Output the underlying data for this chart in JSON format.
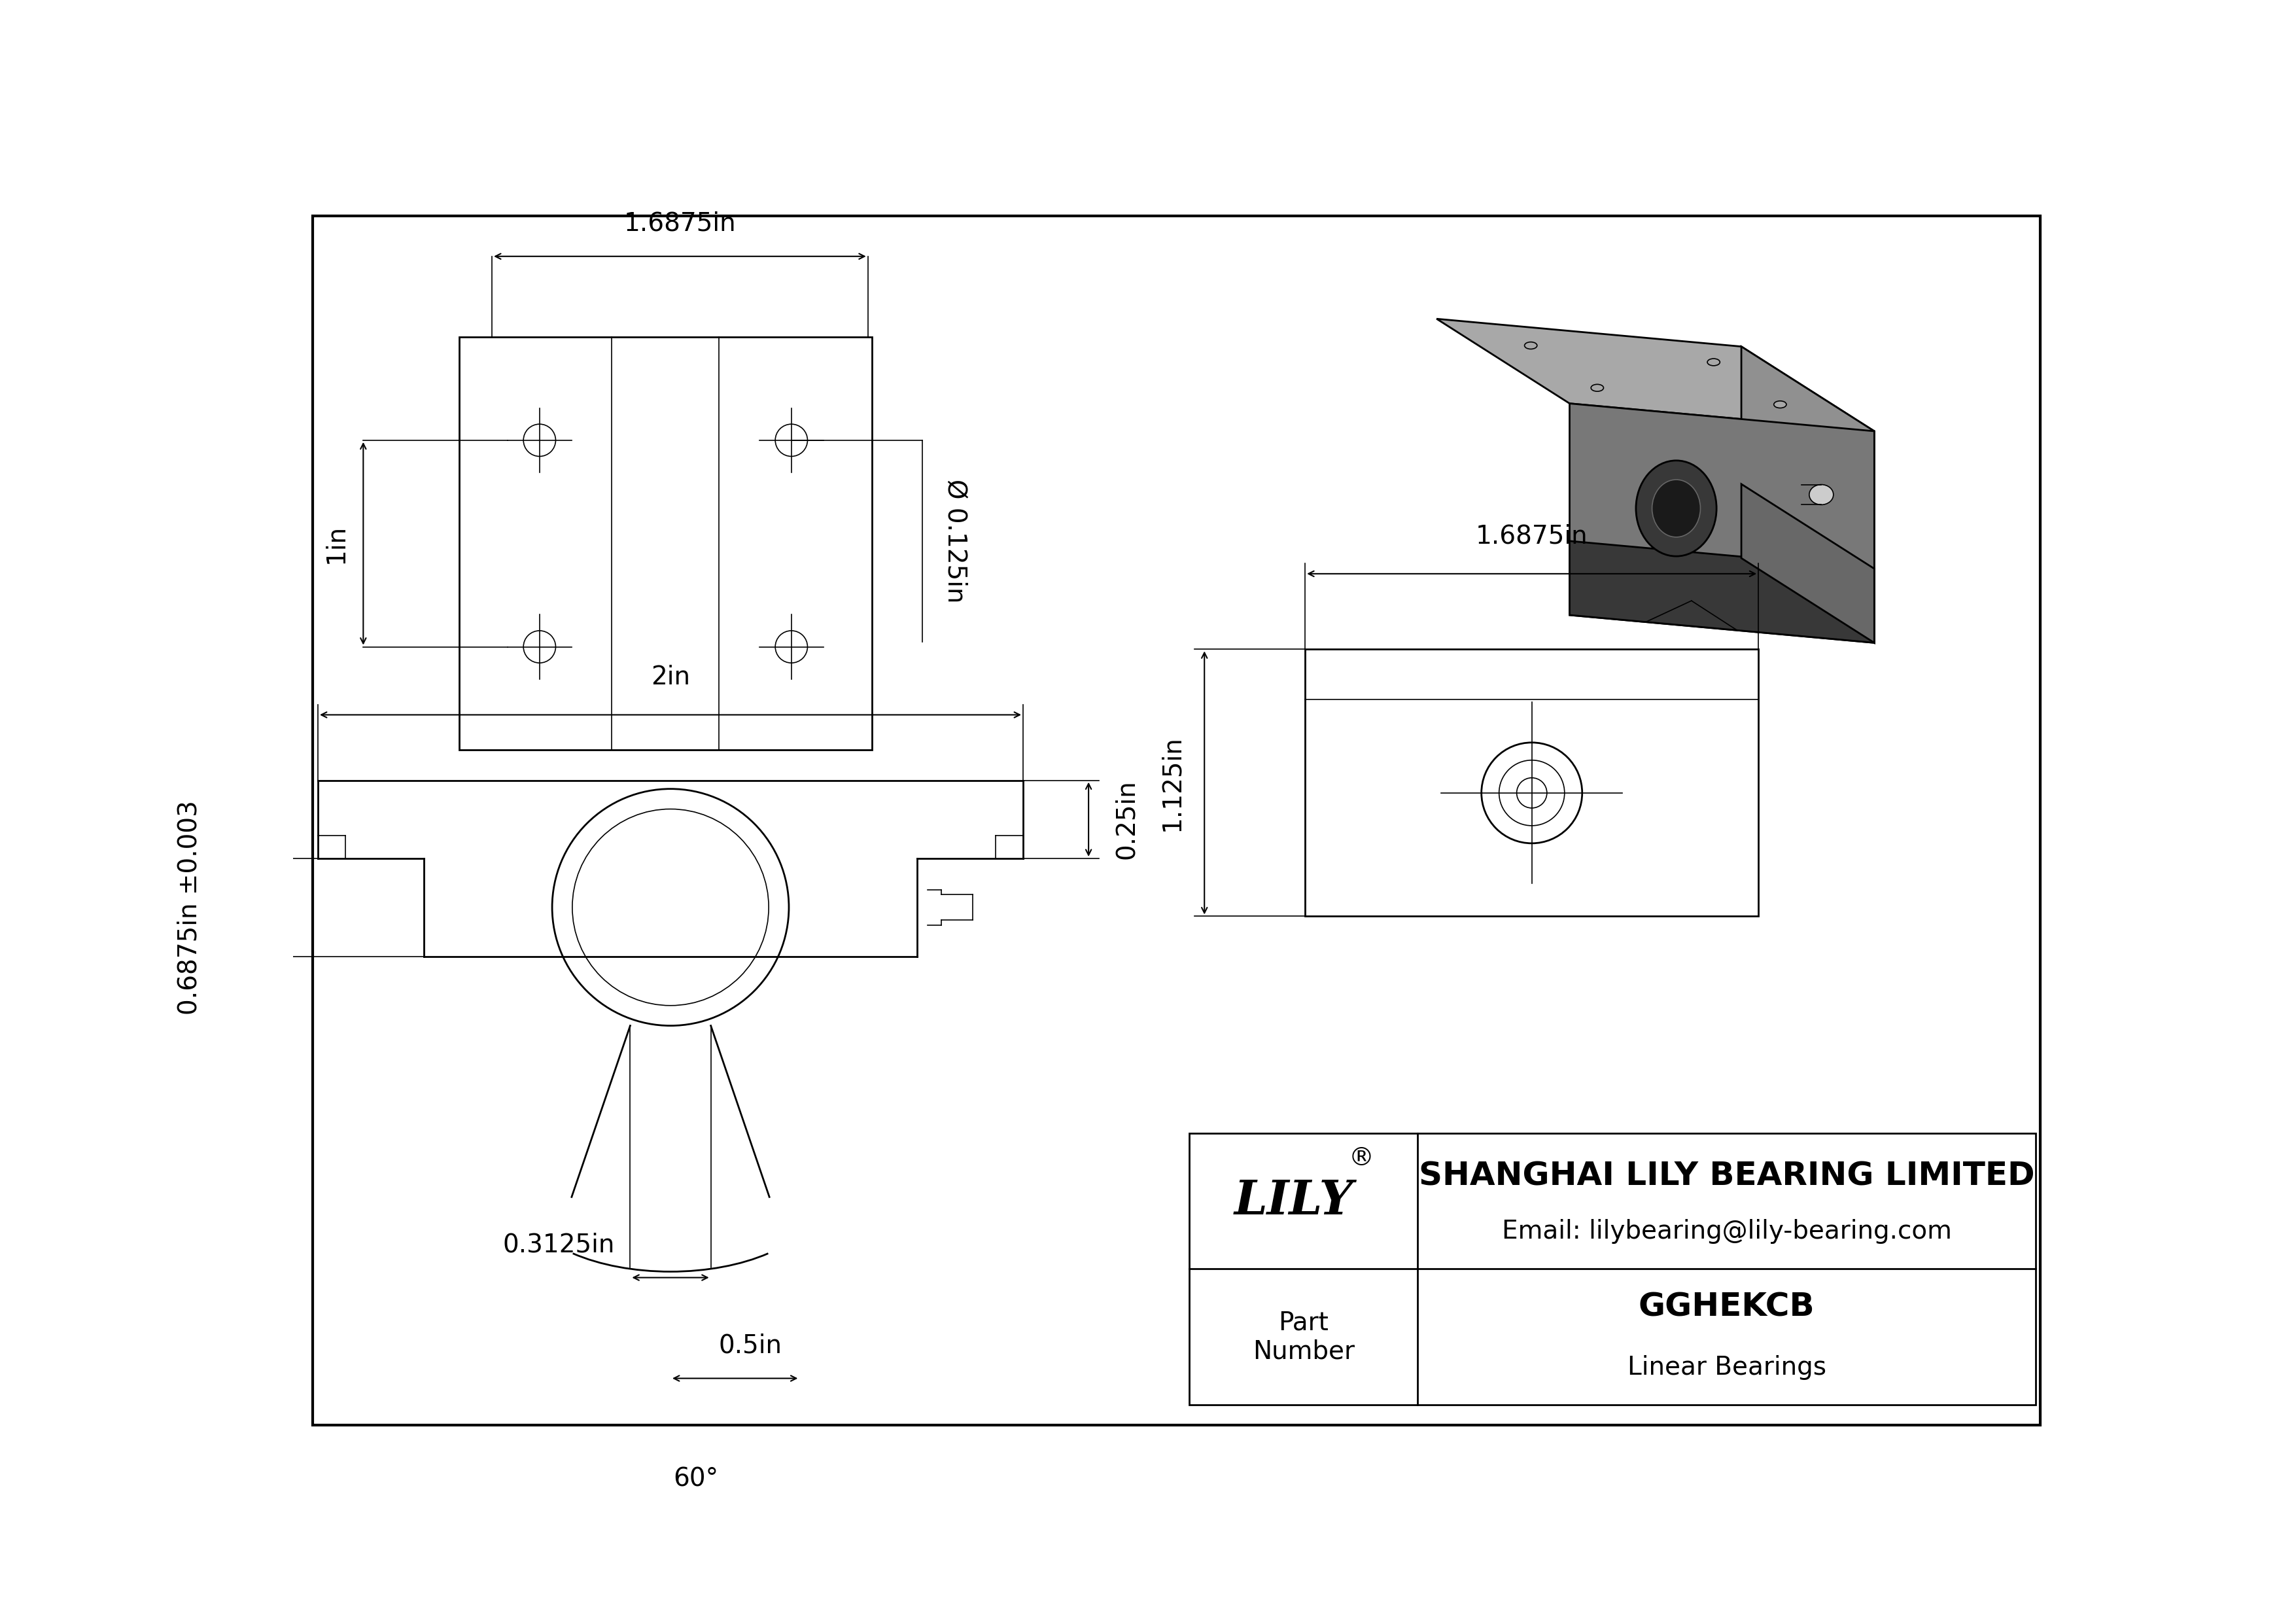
{
  "title": "GGHEKCB",
  "subtitle": "Linear Bearings",
  "company": "SHANGHAI LILY BEARING LIMITED",
  "email": "Email: lilybearing@lily-bearing.com",
  "part_label": "Part\nNumber",
  "dims": {
    "top_width": "1.6875in",
    "top_height": "1in",
    "hole_dia": "Ø 0.125in",
    "front_width": "2in",
    "front_height1": "0.25in",
    "front_height2": "0.6875in ±0.003",
    "groove_width": "0.3125in",
    "groove_depth": "0.5in",
    "groove_angle": "60°",
    "side_width": "1.6875in",
    "side_height": "1.125in"
  },
  "colors": {
    "iso_top": "#a8a8a8",
    "iso_left": "#787878",
    "iso_right": "#909090",
    "iso_dark": "#383838",
    "iso_mid": "#686868",
    "line": "#000000",
    "bg": "#ffffff",
    "dim": "#000000"
  }
}
